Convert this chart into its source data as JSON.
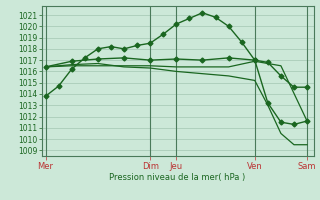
{
  "bg_color": "#cce8d8",
  "grid_color": "#aaccb8",
  "line_color": "#1a6620",
  "vline_color": "#4a7a5a",
  "ylabel": "Pression niveau de la mer( hPa )",
  "ylim": [
    1008.5,
    1021.8
  ],
  "yticks": [
    1009,
    1010,
    1011,
    1012,
    1013,
    1014,
    1015,
    1016,
    1017,
    1018,
    1019,
    1020,
    1021
  ],
  "x_day_labels": [
    "Mer",
    "Dim",
    "Jeu",
    "Ven",
    "Sam"
  ],
  "x_day_positions": [
    0,
    8,
    10,
    16,
    20
  ],
  "xlim": [
    -0.3,
    20.5
  ],
  "line1": {
    "x": [
      0,
      1,
      2,
      3,
      4,
      5,
      6,
      7,
      8,
      9,
      10,
      11,
      12,
      13,
      14,
      15,
      16,
      17,
      18,
      19,
      20
    ],
    "y": [
      1013.8,
      1014.7,
      1016.2,
      1017.2,
      1018.0,
      1018.2,
      1018.0,
      1018.3,
      1018.5,
      1019.3,
      1020.2,
      1020.7,
      1021.2,
      1020.8,
      1020.0,
      1018.6,
      1017.0,
      1016.8,
      1015.6,
      1014.6,
      1014.6
    ],
    "marker": "D",
    "markersize": 2.5
  },
  "line2": {
    "x": [
      0,
      2,
      4,
      6,
      8,
      10,
      12,
      14,
      16,
      18,
      20
    ],
    "y": [
      1016.4,
      1016.5,
      1016.5,
      1016.5,
      1016.5,
      1016.4,
      1016.4,
      1016.4,
      1016.9,
      1016.5,
      1011.6
    ]
  },
  "line3": {
    "x": [
      0,
      2,
      4,
      6,
      8,
      10,
      12,
      14,
      16,
      17,
      18,
      19,
      20
    ],
    "y": [
      1016.4,
      1016.6,
      1016.7,
      1016.4,
      1016.3,
      1016.0,
      1015.8,
      1015.6,
      1015.2,
      1013.0,
      1010.5,
      1009.5,
      1009.5
    ]
  },
  "line4": {
    "x": [
      0,
      2,
      4,
      6,
      8,
      10,
      12,
      14,
      16,
      17,
      18,
      19,
      20
    ],
    "y": [
      1016.4,
      1016.9,
      1017.1,
      1017.2,
      1017.0,
      1017.1,
      1017.0,
      1017.2,
      1017.0,
      1013.2,
      1011.5,
      1011.3,
      1011.6
    ],
    "marker": "D",
    "markersize": 2.5
  },
  "vline_positions": [
    0,
    8,
    10,
    16,
    20
  ],
  "ylabel_fontsize": 6.0,
  "ytick_fontsize": 5.5,
  "xtick_fontsize": 6.0
}
